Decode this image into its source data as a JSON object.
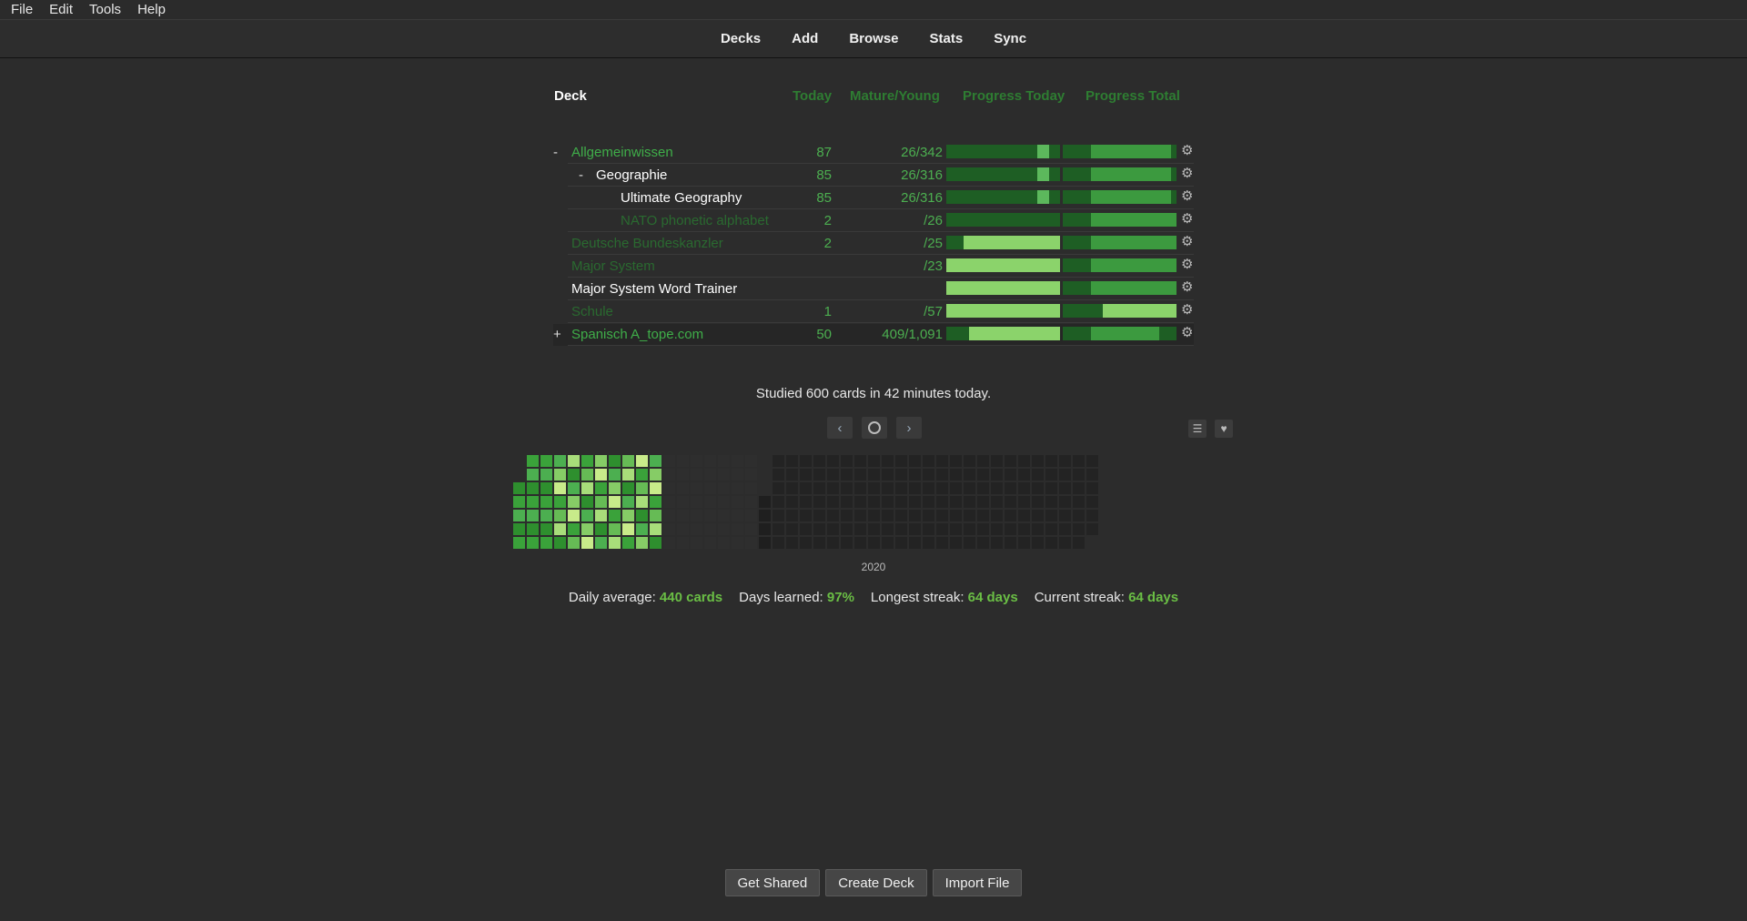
{
  "menu": {
    "file": "File",
    "edit": "Edit",
    "tools": "Tools",
    "help": "Help"
  },
  "toolbar": {
    "decks": "Decks",
    "add": "Add",
    "browse": "Browse",
    "stats": "Stats",
    "sync": "Sync"
  },
  "table_header": {
    "deck": "Deck",
    "today": "Today",
    "mature_young": "Mature/Young",
    "progress_today": "Progress Today",
    "progress_total": "Progress Total"
  },
  "decks": [
    {
      "expander": "-",
      "name": "Allgemeinwissen",
      "today": "87",
      "mature": "26/342",
      "style": "bright",
      "today_progress": 0.9,
      "total_progress": 0.95
    },
    {
      "expander": "-",
      "name": "Geographie",
      "today": "85",
      "mature": "26/316",
      "style": "white",
      "today_progress": 0.9,
      "total_progress": 0.95
    },
    {
      "expander": "",
      "name": "Ultimate Geography",
      "today": "85",
      "mature": "26/316",
      "style": "white",
      "today_progress": 0.9,
      "total_progress": 0.95
    },
    {
      "expander": "",
      "name": "NATO phonetic alphabet",
      "today": "2",
      "mature": "/26",
      "style": "dim",
      "today_progress": 0.0,
      "total_progress": 1.0
    },
    {
      "expander": "",
      "name": "Deutsche Bundeskanzler",
      "today": "2",
      "mature": "/25",
      "style": "dim",
      "today_progress": 0.85,
      "total_progress": 1.0
    },
    {
      "expander": "",
      "name": "Major System",
      "today": "",
      "mature": "/23",
      "style": "dim",
      "today_progress": 1.0,
      "total_progress": 1.0
    },
    {
      "expander": "",
      "name": "Major System Word Trainer",
      "today": "",
      "mature": "",
      "style": "white",
      "today_progress": 1.0,
      "total_progress": 1.0
    },
    {
      "expander": "",
      "name": "Schule",
      "today": "1",
      "mature": "/57",
      "style": "dim",
      "today_progress": 1.0,
      "total_progress": 0.57
    },
    {
      "expander": "+",
      "name": "Spanisch A_tope.com",
      "today": "50",
      "mature": "409/1,091",
      "style": "bright",
      "today_progress": 0.8,
      "total_progress": 0.85
    }
  ],
  "studied_text": "Studied 600 cards in 42 minutes today.",
  "heatmap": {
    "year": "2020"
  },
  "stats": {
    "daily_avg_label": "Daily average:",
    "daily_avg_value": "440 cards",
    "days_learned_label": "Days learned:",
    "days_learned_value": "97%",
    "longest_label": "Longest streak:",
    "longest_value": "64 days",
    "current_label": "Current streak:",
    "current_value": "64 days"
  },
  "buttons": {
    "get_shared": "Get Shared",
    "create_deck": "Create Deck",
    "import_file": "Import File"
  },
  "colors": {
    "accent": "#3fae49",
    "bar_dark": "#1e5e24",
    "bar_mid": "#3c9a3f",
    "bar_light": "#8bd36b"
  }
}
